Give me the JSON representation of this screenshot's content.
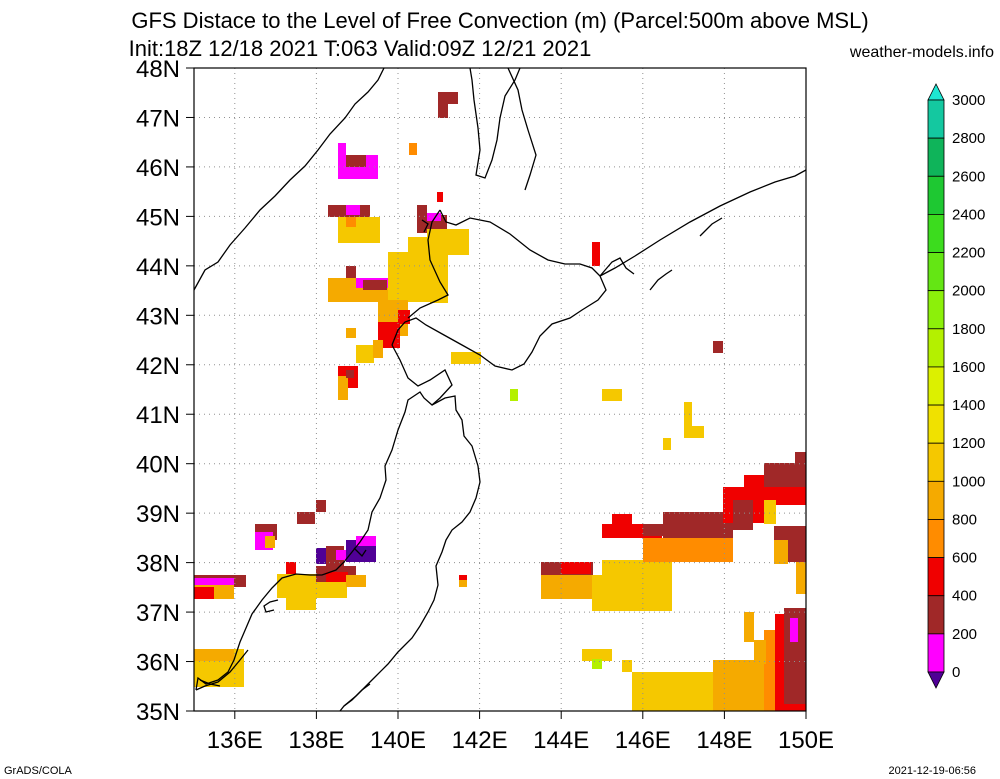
{
  "title_line1": "GFS Distace to the Level of Free Convection (m) (Parcel:500m above MSL)",
  "title_line2": "Init:18Z 12/18 2021 T:063 Valid:09Z 12/21 2021",
  "site": "weather-models.info",
  "footer_left": "GrADS/COLA",
  "footer_right": "2021-12-19-06:56",
  "map": {
    "lat_labels": [
      "48N",
      "47N",
      "46N",
      "45N",
      "44N",
      "43N",
      "42N",
      "41N",
      "40N",
      "39N",
      "38N",
      "37N",
      "36N",
      "35N"
    ],
    "lon_labels": [
      "136E",
      "138E",
      "140E",
      "142E",
      "144E",
      "146E",
      "148E",
      "150E"
    ]
  },
  "colorbar": {
    "labels": [
      "3000",
      "2800",
      "2600",
      "2400",
      "2200",
      "2000",
      "1800",
      "1600",
      "1400",
      "1200",
      "1000",
      "800",
      "600",
      "400",
      "200",
      "0"
    ],
    "colors": [
      "#1ee6d2",
      "#14c8a0",
      "#0fb45a",
      "#1ec832",
      "#3cdc1e",
      "#64e614",
      "#8cf00a",
      "#b4f000",
      "#dcf000",
      "#f0e100",
      "#f5c800",
      "#f5aa00",
      "#ff8c00",
      "#f00000",
      "#a02828",
      "#ff00ff",
      "#500096"
    ]
  },
  "colors": {
    "yellow": "#f5c800",
    "lightorange": "#f5aa00",
    "orange": "#ff8c00",
    "red": "#f00000",
    "brown": "#a02828",
    "magenta": "#ff00ff",
    "purple": "#500096",
    "green": "#b4f000"
  }
}
